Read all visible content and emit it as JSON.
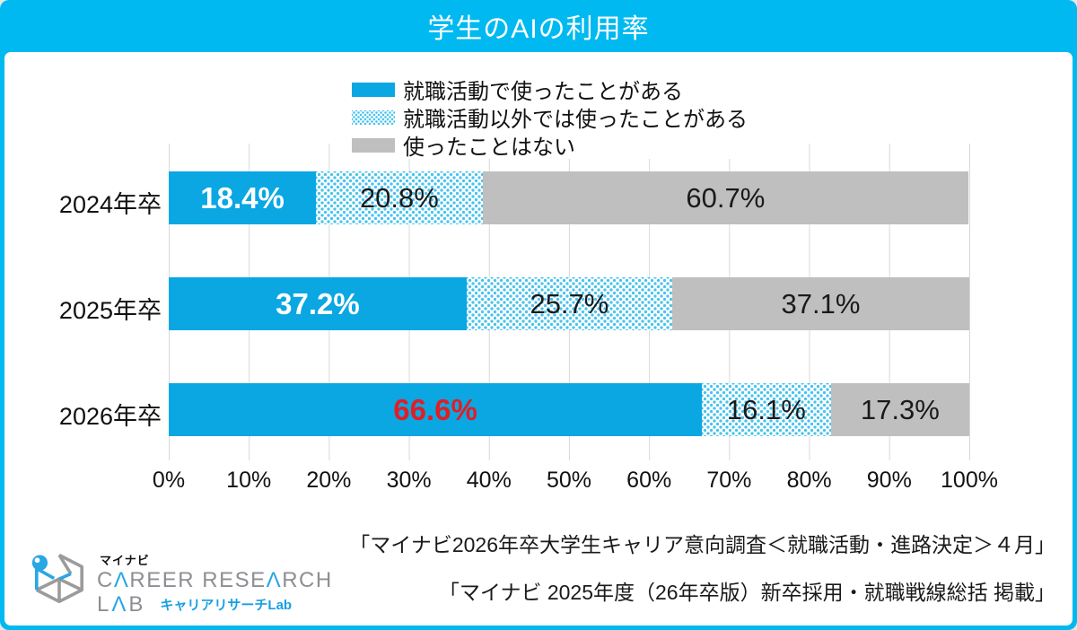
{
  "header": {
    "title": "学生のAIの利用率"
  },
  "legend": {
    "items": [
      {
        "label": "就職活動で使ったことがある",
        "swatch": "solid"
      },
      {
        "label": "就職活動以外では使ったことがある",
        "swatch": "dots"
      },
      {
        "label": "使ったことはない",
        "swatch": "gray"
      }
    ]
  },
  "chart_data": {
    "type": "bar",
    "orientation": "horizontal",
    "stacked": true,
    "title": "学生のAIの利用率",
    "categories": [
      "2024年卒",
      "2025年卒",
      "2026年卒"
    ],
    "series": [
      {
        "name": "就職活動で使ったことがある",
        "style": "solid-blue",
        "color": "#0aa7e2",
        "values": [
          18.4,
          37.2,
          66.6
        ],
        "label_colors": [
          "#ffffff",
          "#ffffff",
          "#e01e25"
        ],
        "label_bold": true
      },
      {
        "name": "就職活動以外では使ったことがある",
        "style": "halftone-dots",
        "color": "#bfe6f5",
        "dot_color": "#49c3ed",
        "values": [
          20.8,
          25.7,
          16.1
        ],
        "label_colors": [
          "#1a1a1a",
          "#1a1a1a",
          "#1a1a1a"
        ],
        "label_bold": false
      },
      {
        "name": "使ったことはない",
        "style": "solid-gray",
        "color": "#c0bfbf",
        "values": [
          60.7,
          37.1,
          17.3
        ],
        "label_colors": [
          "#1a1a1a",
          "#1a1a1a",
          "#1a1a1a"
        ],
        "label_bold": false
      }
    ],
    "x_ticks": [
      "0%",
      "10%",
      "20%",
      "30%",
      "40%",
      "50%",
      "60%",
      "70%",
      "80%",
      "90%",
      "100%"
    ],
    "xlim": [
      0,
      100
    ],
    "grid": "vertical-gridlines",
    "legend_position": "top-center",
    "value_suffix": "%"
  },
  "sources": {
    "line1": "「マイナビ2026年卒大学生キャリア意向調査＜就職活動・進路決定＞４月」",
    "line2": "「マイナビ 2025年度（26年卒版）新卒採用・就職戦線総括 掲載」"
  },
  "logo": {
    "brand": "マイナビ",
    "title_line1": "CAREER RESEARCH",
    "title_line2": "LAB",
    "subtitle": "キャリアリサーチLab"
  },
  "colors": {
    "accent_cyan": "#00b9f0",
    "bar_blue": "#0aa7e2",
    "bar_gray": "#c0bfbf",
    "pattern_dot": "#49c3ed",
    "highlight_red": "#e01e25",
    "grid_line": "#d9d9d9"
  }
}
